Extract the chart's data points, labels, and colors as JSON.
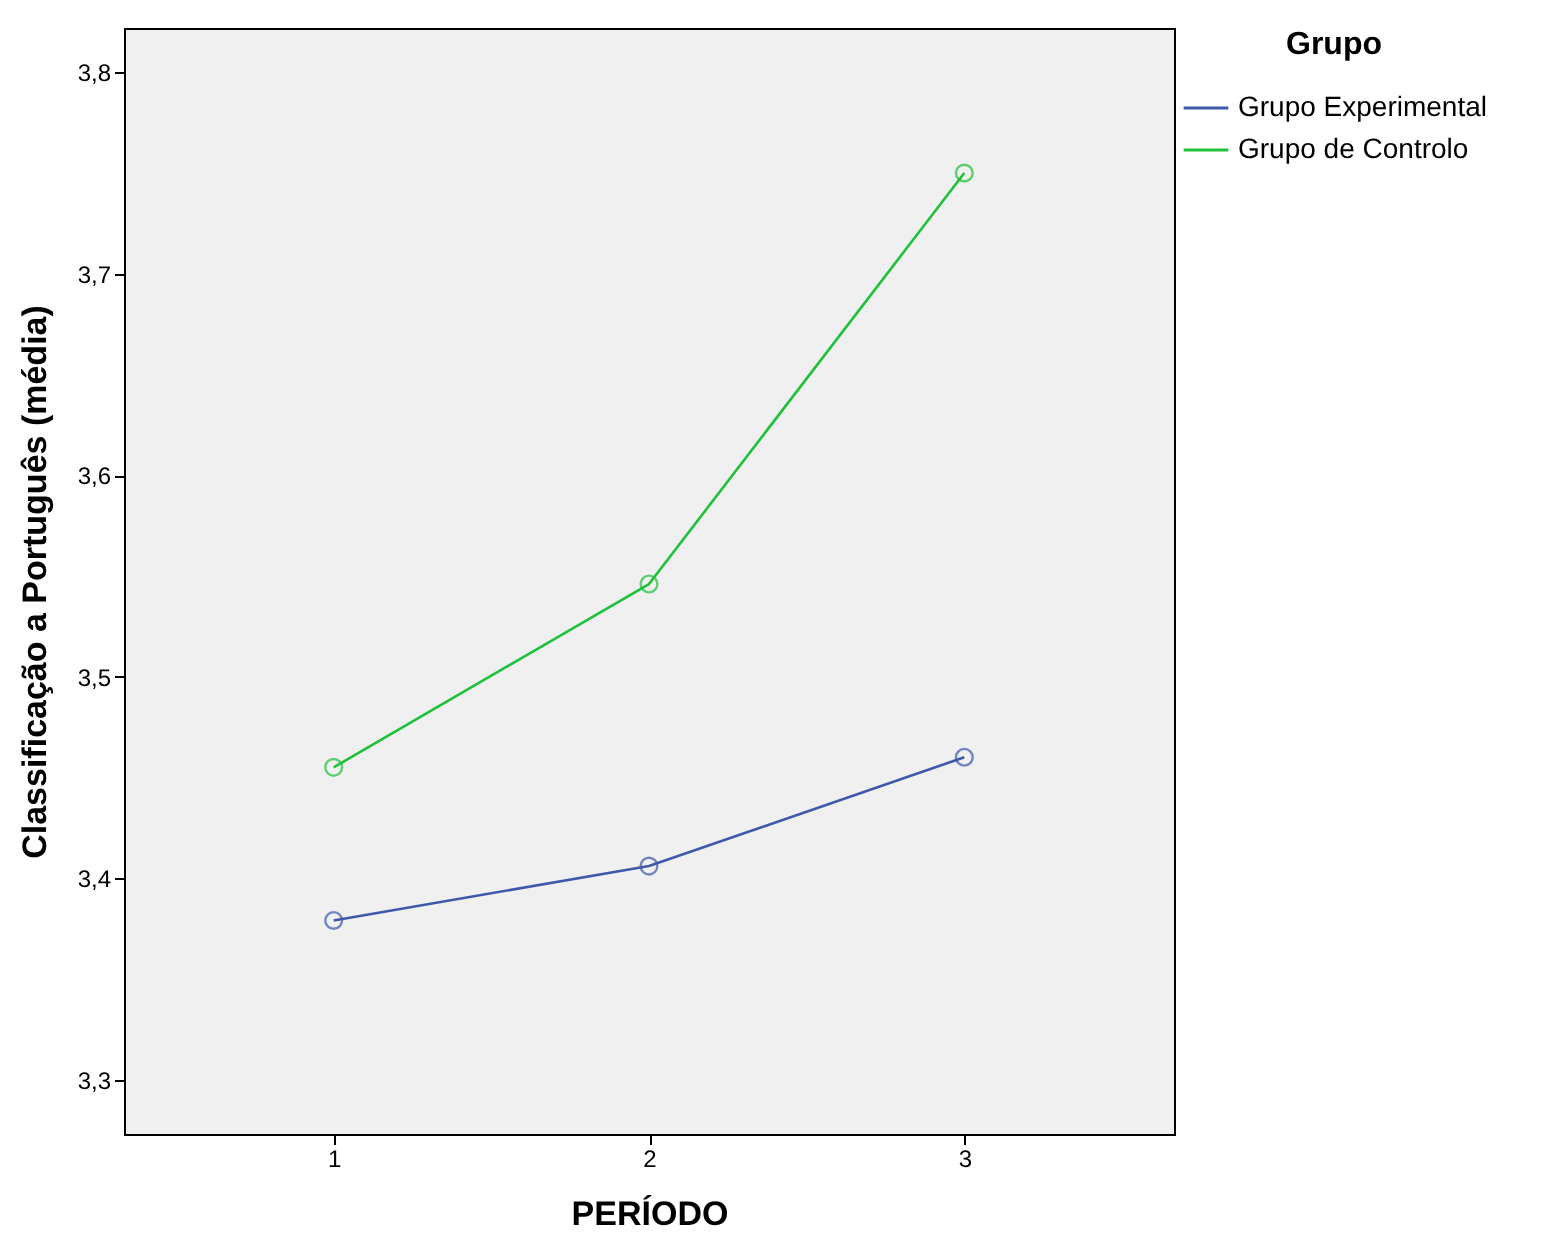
{
  "chart_data": {
    "type": "line",
    "xlabel": "PERÍODO",
    "ylabel": "Classificação a Português (média)",
    "legend_title": "Grupo",
    "categories": [
      "1",
      "2",
      "3"
    ],
    "series": [
      {
        "name": "Grupo Experimental",
        "color": "#3e58ac",
        "values": [
          3.379,
          3.406,
          3.46
        ]
      },
      {
        "name": "Grupo de Controlo",
        "color": "#1fc13a",
        "values": [
          3.455,
          3.546,
          3.75
        ]
      }
    ],
    "ylim": [
      3.273,
      3.822
    ],
    "yticks": [
      {
        "value": 3.3,
        "label": "3,3"
      },
      {
        "value": 3.4,
        "label": "3,4"
      },
      {
        "value": 3.5,
        "label": "3,5"
      },
      {
        "value": 3.6,
        "label": "3,6"
      },
      {
        "value": 3.7,
        "label": "3,7"
      },
      {
        "value": 3.8,
        "label": "3,8"
      }
    ],
    "grid": false,
    "legend": "top right",
    "marker": "circle",
    "line_style": "solid"
  }
}
